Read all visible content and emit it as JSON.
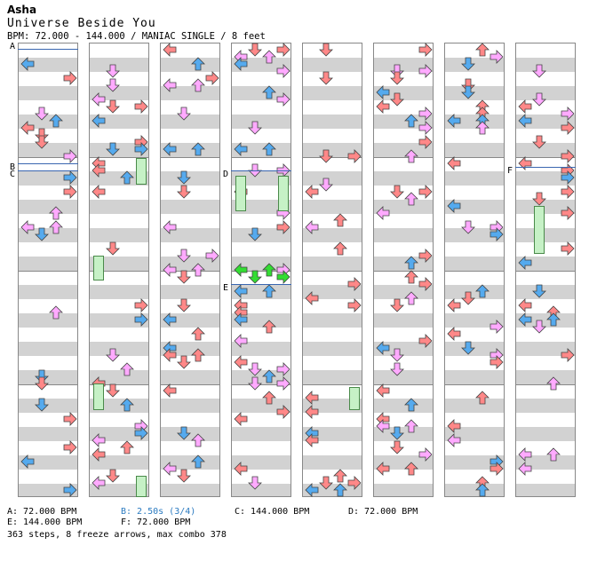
{
  "author": "Asha",
  "title": "Universe Beside You",
  "bpm_line": "BPM: 72.000 - 144.000 / MANIAC SINGLE / 8 feet",
  "markers": [
    "A",
    "B",
    "C",
    "D",
    "E",
    "F"
  ],
  "legend": [
    {
      "text": "A: 72.000 BPM",
      "highlight": false
    },
    {
      "text": "B: 2.50s (3/4)",
      "highlight": true
    },
    {
      "text": "C: 144.000 BPM",
      "highlight": false
    },
    {
      "text": "D: 72.000 BPM",
      "highlight": false
    },
    {
      "text": "E: 144.000 BPM",
      "highlight": false
    },
    {
      "text": "F: 72.000 BPM",
      "highlight": false
    }
  ],
  "summary": "363 steps, 8 freeze arrows, max combo 378",
  "colors": {
    "quarter": "#ff8888",
    "eighth": "#55aaee",
    "sixteenth": "#ffaaff",
    "freeze": "#c6f1c6",
    "shock": "#33dd33"
  },
  "arrow_glyph_names": [
    "arrow-left-icon",
    "arrow-down-icon",
    "arrow-up-icon",
    "arrow-right-icon"
  ]
}
